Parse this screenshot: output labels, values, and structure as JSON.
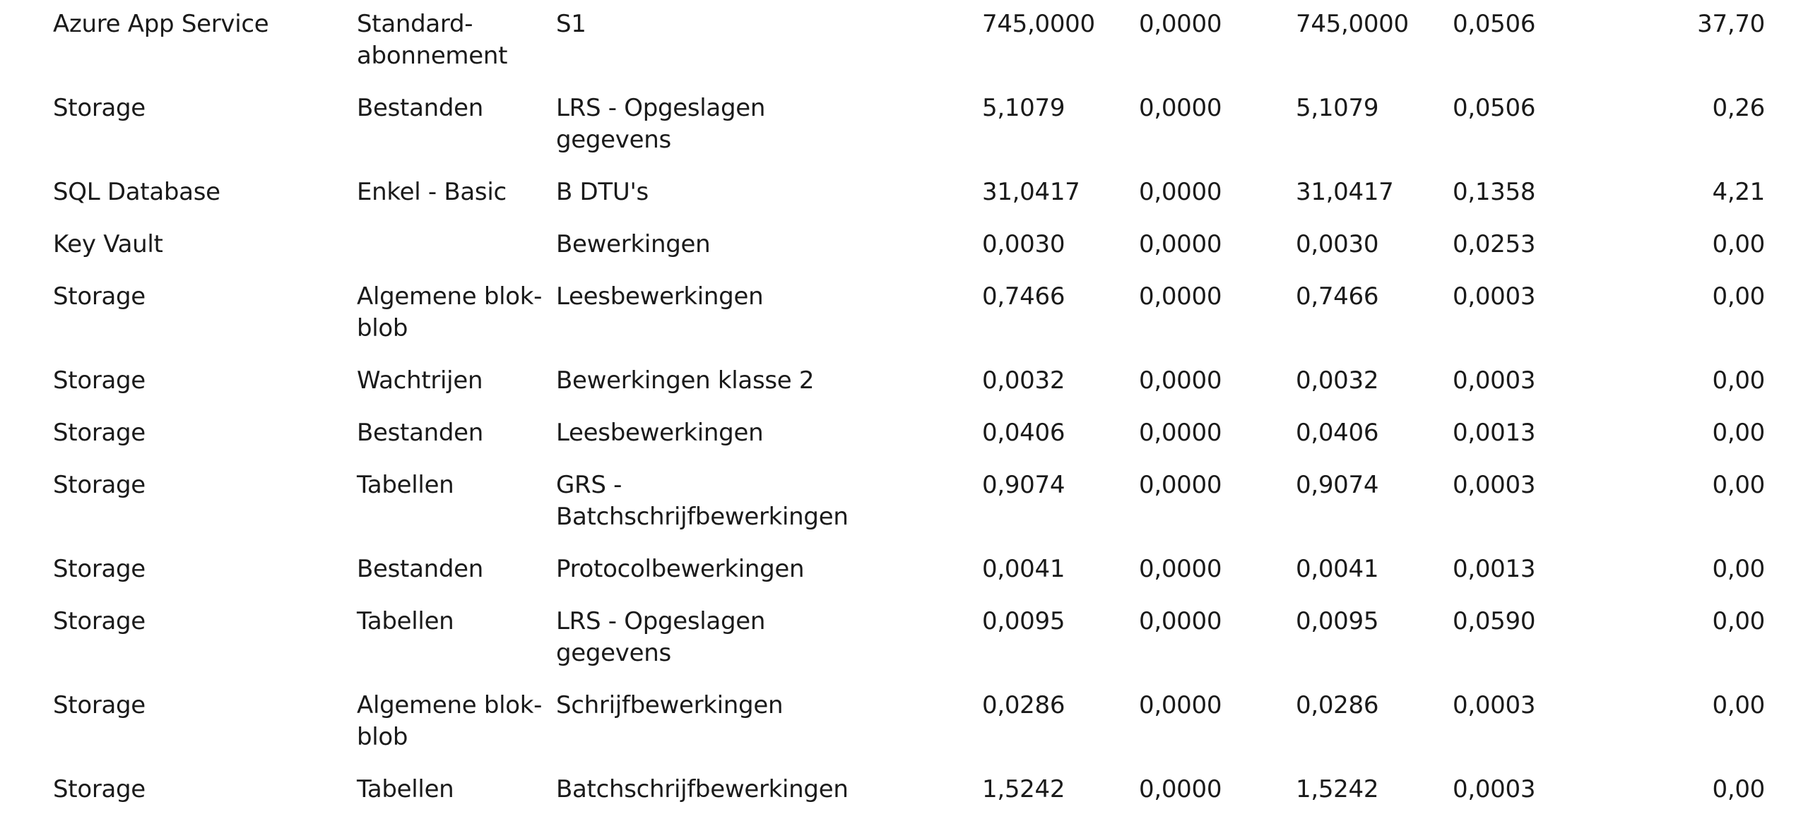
{
  "rows": [
    {
      "service": "Azure App Service",
      "category": "Standard-\nabonnement",
      "meter": "S1",
      "used": "745,0000",
      "included": "0,0000",
      "billable": "745,0000",
      "price": "0,0506",
      "cost": "37,70"
    },
    {
      "service": "Storage",
      "category": "Bestanden",
      "meter": "LRS - Opgeslagen\ngegevens",
      "used": "5,1079",
      "included": "0,0000",
      "billable": "5,1079",
      "price": "0,0506",
      "cost": "0,26"
    },
    {
      "service": "SQL Database",
      "category": "Enkel - Basic",
      "meter": "B DTU's",
      "used": "31,0417",
      "included": "0,0000",
      "billable": "31,0417",
      "price": "0,1358",
      "cost": "4,21"
    },
    {
      "service": "Key Vault",
      "category": "",
      "meter": "Bewerkingen",
      "used": "0,0030",
      "included": "0,0000",
      "billable": "0,0030",
      "price": "0,0253",
      "cost": "0,00"
    },
    {
      "service": "Storage",
      "category": "Algemene blok-\nblob",
      "meter": "Leesbewerkingen",
      "used": "0,7466",
      "included": "0,0000",
      "billable": "0,7466",
      "price": "0,0003",
      "cost": "0,00"
    },
    {
      "service": "Storage",
      "category": "Wachtrijen",
      "meter": "Bewerkingen klasse 2",
      "used": "0,0032",
      "included": "0,0000",
      "billable": "0,0032",
      "price": "0,0003",
      "cost": "0,00"
    },
    {
      "service": "Storage",
      "category": "Bestanden",
      "meter": "Leesbewerkingen",
      "used": "0,0406",
      "included": "0,0000",
      "billable": "0,0406",
      "price": "0,0013",
      "cost": "0,00"
    },
    {
      "service": "Storage",
      "category": "Tabellen",
      "meter": "GRS -\nBatchschrijfbewerkingen",
      "used": "0,9074",
      "included": "0,0000",
      "billable": "0,9074",
      "price": "0,0003",
      "cost": "0,00"
    },
    {
      "service": "Storage",
      "category": "Bestanden",
      "meter": "Protocolbewerkingen",
      "used": "0,0041",
      "included": "0,0000",
      "billable": "0,0041",
      "price": "0,0013",
      "cost": "0,00"
    },
    {
      "service": "Storage",
      "category": "Tabellen",
      "meter": "LRS - Opgeslagen\ngegevens",
      "used": "0,0095",
      "included": "0,0000",
      "billable": "0,0095",
      "price": "0,0590",
      "cost": "0,00"
    },
    {
      "service": "Storage",
      "category": "Algemene blok-\nblob",
      "meter": "Schrijfbewerkingen",
      "used": "0,0286",
      "included": "0,0000",
      "billable": "0,0286",
      "price": "0,0003",
      "cost": "0,00"
    },
    {
      "service": "Storage",
      "category": "Tabellen",
      "meter": "Batchschrijfbewerkingen",
      "used": "1,5242",
      "included": "0,0000",
      "billable": "1,5242",
      "price": "0,0003",
      "cost": "0,00"
    }
  ]
}
